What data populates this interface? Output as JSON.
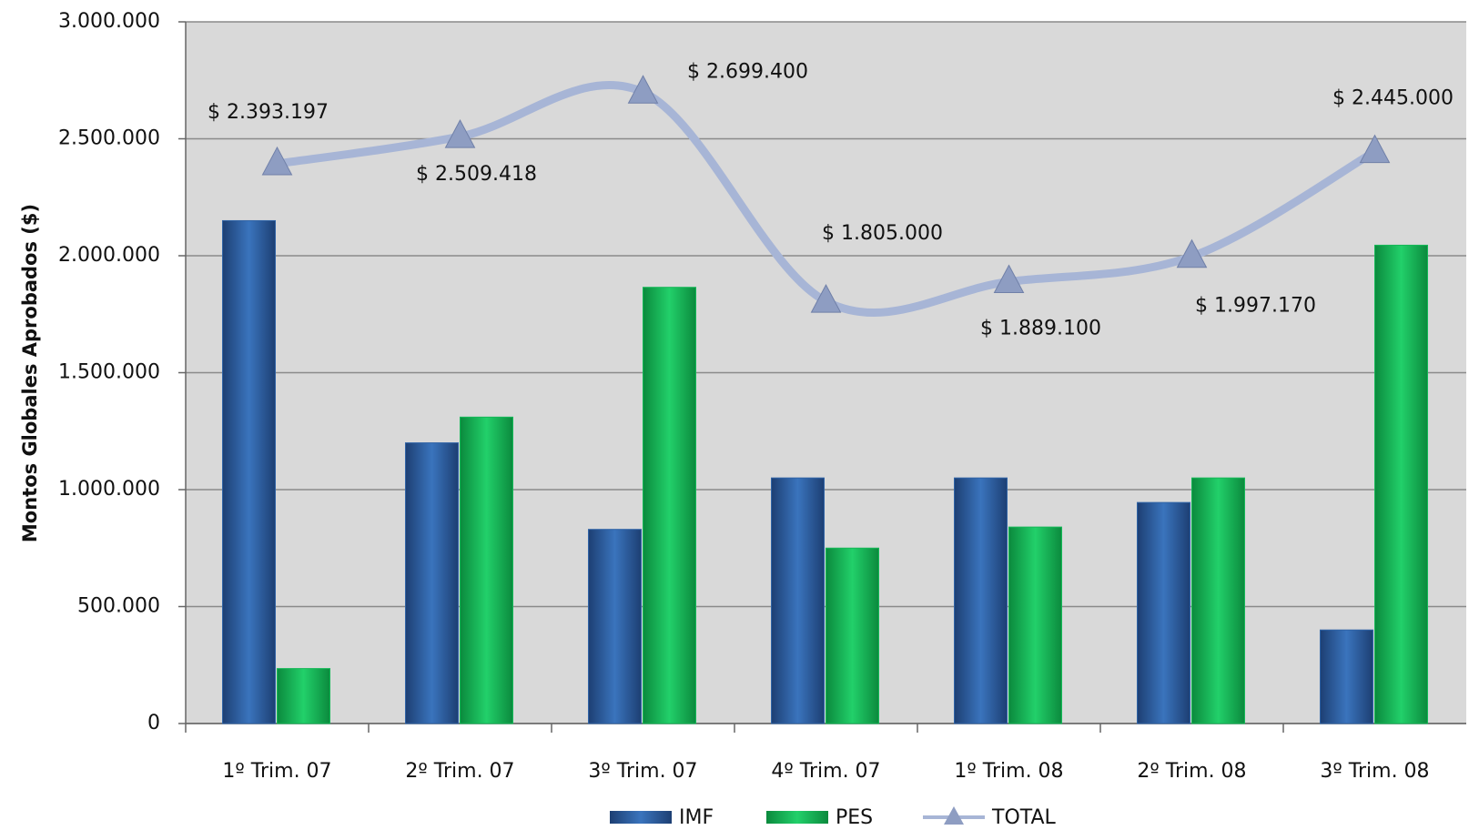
{
  "chart_data": {
    "type": "bar",
    "y_label": "Montos Globales Aprobados ($)",
    "categories": [
      "1º Trim. 07",
      "2º Trim. 07",
      "3º Trim. 07",
      "4º Trim. 07",
      "1º Trim. 08",
      "2º Trim. 08",
      "3º Trim. 08"
    ],
    "series": [
      {
        "name": "IMF",
        "color": "#2f63a6",
        "values": [
          2150000,
          1200000,
          830000,
          1050000,
          1050000,
          945000,
          400000
        ]
      },
      {
        "name": "PES",
        "color": "#14b857",
        "values": [
          235000,
          1310000,
          1865000,
          750000,
          840000,
          1050000,
          2045000
        ]
      },
      {
        "name": "TOTAL",
        "type": "line",
        "color": "#a7b5d6",
        "values": [
          2393197,
          2509418,
          2699400,
          1805000,
          1889100,
          1997170,
          2445000
        ],
        "value_labels": [
          "$ 2.393.197",
          "$ 2.509.418",
          "$ 2.699.400",
          "$ 1.805.000",
          "$ 1.889.100",
          "$ 1.997.170",
          "$ 2.445.000"
        ]
      }
    ],
    "ylim": [
      0,
      3000000
    ],
    "yticks": [
      0,
      {
        "value": 500000,
        "label": "500.000"
      },
      {
        "value": 1000000,
        "label": "1.000.000"
      },
      {
        "value": 1500000,
        "label": "1.500.000"
      },
      {
        "value": 2000000,
        "label": "2.000.000"
      },
      {
        "value": 2500000,
        "label": "2.500.000"
      },
      {
        "value": 3000000,
        "label": "3.000.000"
      }
    ],
    "grid": true,
    "legend": "bottom"
  }
}
